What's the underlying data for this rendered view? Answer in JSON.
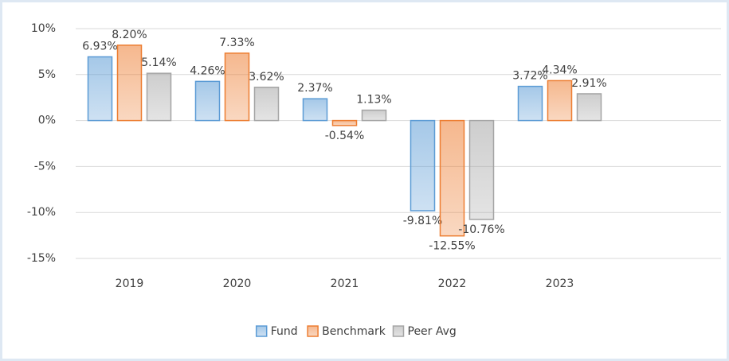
{
  "chart_data": {
    "type": "bar",
    "categories": [
      "2019",
      "2020",
      "2021",
      "2022",
      "2023"
    ],
    "series": [
      {
        "name": "Fund",
        "color": "#5b9bd5",
        "values": [
          6.93,
          4.26,
          2.37,
          -9.81,
          3.72
        ],
        "value_labels": [
          "6.93%",
          "4.26%",
          "2.37%",
          "-9.81%",
          "3.72%"
        ]
      },
      {
        "name": "Benchmark",
        "color": "#ed7d31",
        "values": [
          8.2,
          7.33,
          -0.54,
          -12.55,
          4.34
        ],
        "value_labels": [
          "8.20%",
          "7.33%",
          "-0.54%",
          "-12.55%",
          "4.34%"
        ]
      },
      {
        "name": "Peer Avg",
        "color": "#a5a5a5",
        "values": [
          5.14,
          3.62,
          1.13,
          -10.76,
          2.91
        ],
        "value_labels": [
          "5.14%",
          "3.62%",
          "1.13%",
          "-10.76%",
          "2.91%"
        ]
      }
    ],
    "ylim": [
      -15,
      10
    ],
    "yticks": [
      {
        "value": -15,
        "label": "-15%"
      },
      {
        "value": -10,
        "label": "-10%"
      },
      {
        "value": -5,
        "label": "-5%"
      },
      {
        "value": 0,
        "label": "0%"
      },
      {
        "value": 5,
        "label": "5%"
      },
      {
        "value": 10,
        "label": "10%"
      }
    ],
    "grid": true,
    "legend": "bottom"
  }
}
